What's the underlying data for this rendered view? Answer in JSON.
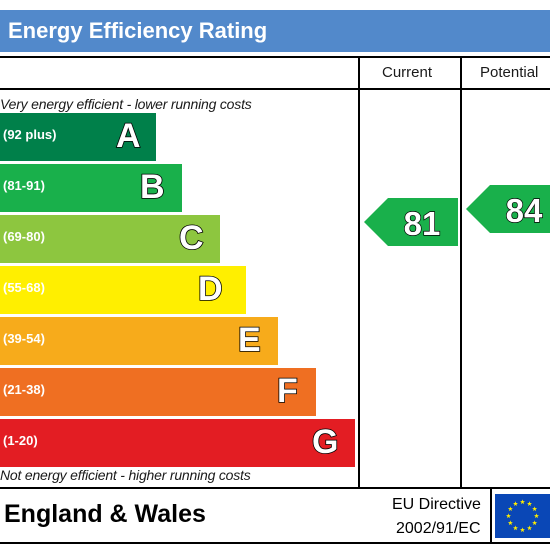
{
  "header": {
    "title": "Energy Efficiency Rating"
  },
  "columns": {
    "current": "Current",
    "potential": "Potential"
  },
  "notes": {
    "top": "Very energy efficient - lower running costs",
    "bottom": "Not energy efficient - higher running costs"
  },
  "bands": [
    {
      "range": "(92 plus)",
      "letter": "A",
      "color": "#00804a"
    },
    {
      "range": "(81-91)",
      "letter": "B",
      "color": "#19b04b"
    },
    {
      "range": "(69-80)",
      "letter": "C",
      "color": "#8dc63f"
    },
    {
      "range": "(55-68)",
      "letter": "D",
      "color": "#ffef00"
    },
    {
      "range": "(39-54)",
      "letter": "E",
      "color": "#f7ab1b"
    },
    {
      "range": "(21-38)",
      "letter": "F",
      "color": "#ef6f22"
    },
    {
      "range": "(1-20)",
      "letter": "G",
      "color": "#e31d23"
    }
  ],
  "ratings": {
    "current": {
      "value": "81",
      "color": "#19b04b"
    },
    "potential": {
      "value": "84",
      "color": "#19b04b"
    }
  },
  "footer": {
    "region": "England & Wales",
    "directive_line1": "EU Directive",
    "directive_line2": "2002/91/EC"
  },
  "colors": {
    "header": "#5289cb",
    "eu_flag": "#0a47b6",
    "eu_stars": "#ffed00"
  }
}
